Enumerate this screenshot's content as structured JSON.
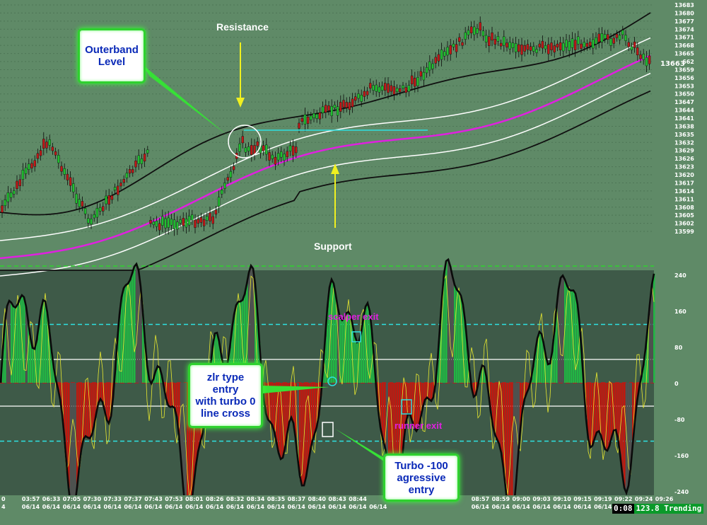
{
  "price_axis": [
    "13683",
    "13680",
    "13677",
    "13674",
    "13671",
    "13668",
    "13665",
    "13662",
    "13659",
    "13656",
    "13653",
    "13650",
    "13647",
    "13644",
    "13641",
    "13638",
    "13635",
    "13632",
    "13629",
    "13626",
    "13623",
    "13620",
    "13617",
    "13614",
    "13611",
    "13608",
    "13605",
    "13602",
    "13599"
  ],
  "current_price": "13663",
  "osc_axis": [
    "240",
    "160",
    "80",
    "0",
    "-80",
    "-160",
    "-240"
  ],
  "time_axis": {
    "times": [
      "0",
      "03:57",
      "06:33",
      "07:05",
      "07:30",
      "07:33",
      "07:37",
      "07:43",
      "07:53",
      "08:01",
      "08:26",
      "08:32",
      "08:34",
      "08:35",
      "08:37",
      "08:40",
      "08:43",
      "08:44",
      "",
      "",
      "",
      "",
      "",
      "08:57",
      "08:59",
      "09:00",
      "09:03",
      "09:10",
      "09:15",
      "09:19",
      "09:22",
      "09:24",
      "09:26"
    ],
    "dates": [
      "4",
      "06/14",
      "06/14",
      "06/14",
      "06/14",
      "06/14",
      "06/14",
      "06/14",
      "06/14",
      "06/14",
      "06/14",
      "06/14",
      "06/14",
      "06/14",
      "06/14",
      "06/14",
      "06/14",
      "06/14",
      "06/14",
      "",
      "",
      "",
      "",
      "06/14",
      "06/14",
      "06/14",
      "06/14",
      "06/14",
      "06/14",
      "06/14",
      "06/14",
      "06/14",
      "06/14"
    ]
  },
  "annotations": {
    "resistance": "Resistance",
    "support": "Support",
    "outerband_line1": "Outerband",
    "outerband_line2": "Level",
    "zlr_line1": "zlr type entry",
    "zlr_line2": "with turbo 0",
    "zlr_line3": "line cross",
    "turbo_line1": "Turbo -100",
    "turbo_line2": "agressive",
    "turbo_line3": "entry",
    "scalper_exit": "scalper exit",
    "runner_exit": "runner exit"
  },
  "status": {
    "time": "0:08",
    "value": "123.8 Trending"
  },
  "colors": {
    "background": "#5f8a67",
    "osc_panel": "#3e5a48",
    "ema_mid": "#e020e0",
    "callout_border": "#2fd12f",
    "callout_text": "#0b2ab8",
    "arrow": "#f0f020",
    "green_hist": "#22b544",
    "red_hist": "#c0180f"
  }
}
